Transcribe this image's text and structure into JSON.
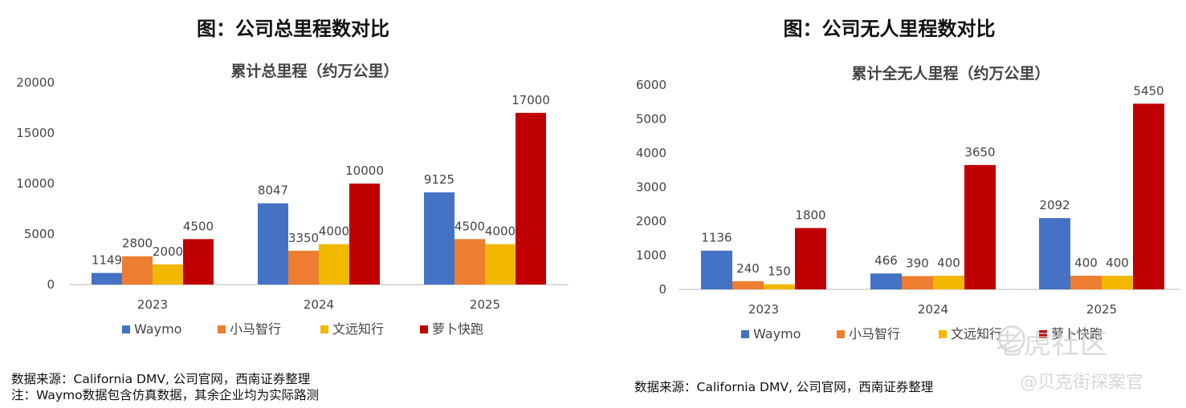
{
  "colors": {
    "waymo": "#4472C4",
    "pony": "#ED7D31",
    "weride": "#F2B800",
    "apollo": "#C00000",
    "axis": "#D0D0D0"
  },
  "left": {
    "main_title": "图：公司总里程数对比",
    "notes": [
      "数据来源：California  DMV, 公司官网，西南证券整理",
      "注：Waymo数据包含仿真数据，其余企业均为实际路测"
    ]
  },
  "right": {
    "main_title": "图：公司无人里程数对比",
    "notes": [
      "数据来源：California  DMV, 公司官网，西南证券整理"
    ]
  },
  "watermark": {
    "line1": "老虎社区",
    "line2": "@贝克街探案官"
  },
  "chart_data": [
    {
      "type": "bar",
      "title": "累计总里程（约万公里）",
      "categories": [
        "2023",
        "2024",
        "2025"
      ],
      "ylim": [
        0,
        20000
      ],
      "yticks": [
        0,
        5000,
        10000,
        15000,
        20000
      ],
      "series": [
        {
          "name": "Waymo",
          "values": [
            1149,
            8047,
            9125
          ]
        },
        {
          "name": "小马智行",
          "values": [
            2800,
            3350,
            4500
          ]
        },
        {
          "name": "文远知行",
          "values": [
            2000,
            4000,
            4000
          ]
        },
        {
          "name": "萝卜快跑",
          "values": [
            4500,
            10000,
            17000
          ]
        }
      ],
      "legend": "bottom",
      "grid": false
    },
    {
      "type": "bar",
      "title": "累计全无人里程（约万公里）",
      "categories": [
        "2023",
        "2024",
        "2025"
      ],
      "ylim": [
        0,
        6000
      ],
      "yticks": [
        0,
        1000,
        2000,
        3000,
        4000,
        5000,
        6000
      ],
      "series": [
        {
          "name": "Waymo",
          "values": [
            1136,
            466,
            2092
          ]
        },
        {
          "name": "小马智行",
          "values": [
            240,
            390,
            400
          ]
        },
        {
          "name": "文远知行",
          "values": [
            150,
            400,
            400
          ]
        },
        {
          "name": "萝卜快跑",
          "values": [
            1800,
            3650,
            5450
          ]
        }
      ],
      "legend": "bottom",
      "grid": false
    }
  ]
}
